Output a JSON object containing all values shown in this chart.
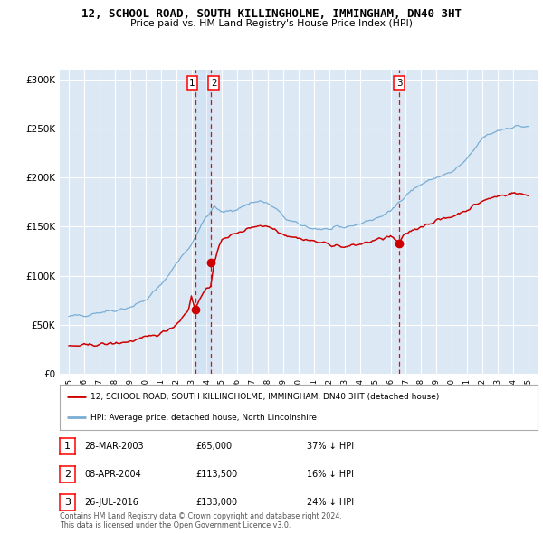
{
  "title": "12, SCHOOL ROAD, SOUTH KILLINGHOLME, IMMINGHAM, DN40 3HT",
  "subtitle": "Price paid vs. HM Land Registry's House Price Index (HPI)",
  "ylim": [
    0,
    310000
  ],
  "yticks": [
    0,
    50000,
    100000,
    150000,
    200000,
    250000,
    300000
  ],
  "ytick_labels": [
    "£0",
    "£50K",
    "£100K",
    "£150K",
    "£200K",
    "£250K",
    "£300K"
  ],
  "background_color": "#dce9f5",
  "grid_color": "#ffffff",
  "red_line_color": "#cc0000",
  "blue_line_color": "#7aadd4",
  "sale1_year": 2003.24,
  "sale1_price": 65000,
  "sale2_year": 2004.27,
  "sale2_price": 113500,
  "sale3_year": 2016.56,
  "sale3_price": 133000,
  "legend_line1": "12, SCHOOL ROAD, SOUTH KILLINGHOLME, IMMINGHAM, DN40 3HT (detached house)",
  "legend_line2": "HPI: Average price, detached house, North Lincolnshire",
  "table_rows": [
    [
      "1",
      "28-MAR-2003",
      "£65,000",
      "37% ↓ HPI"
    ],
    [
      "2",
      "08-APR-2004",
      "£113,500",
      "16% ↓ HPI"
    ],
    [
      "3",
      "26-JUL-2016",
      "£133,000",
      "24% ↓ HPI"
    ]
  ],
  "footnote1": "Contains HM Land Registry data © Crown copyright and database right 2024.",
  "footnote2": "This data is licensed under the Open Government Licence v3.0."
}
